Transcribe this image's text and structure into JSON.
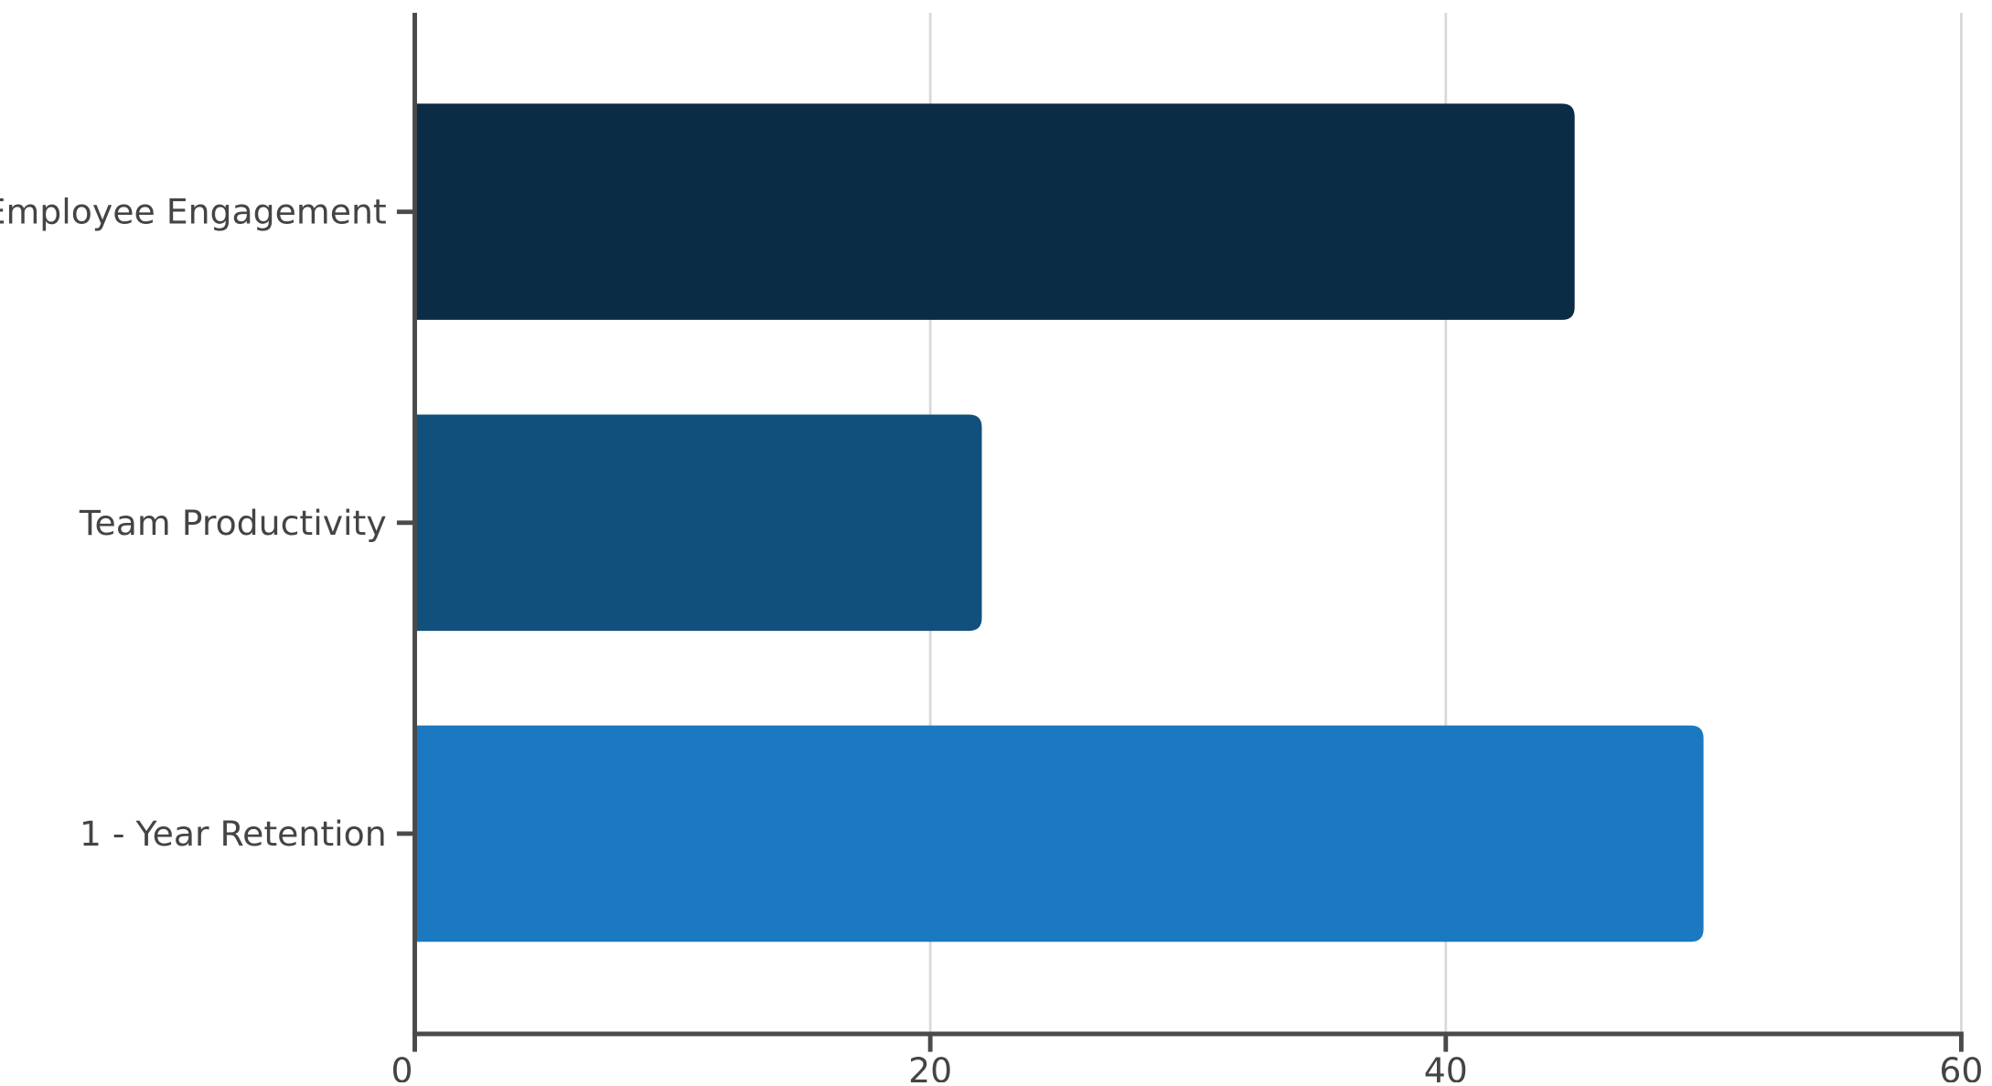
{
  "chart_data": {
    "type": "bar",
    "orientation": "horizontal",
    "title": "",
    "xlabel": "",
    "ylabel": "",
    "categories": [
      "Employee Engagement",
      "Team Productivity",
      "1 - Year Retention"
    ],
    "values": [
      45,
      22,
      50
    ],
    "bar_colors": [
      "#0b2c45",
      "#11507d",
      "#1a79c0"
    ],
    "xlim": [
      0,
      60
    ],
    "x_ticks": [
      0,
      20,
      40,
      60
    ],
    "x_tick_labels": [
      "0",
      "20",
      "40",
      "60"
    ],
    "grid": "vertical",
    "legend": "none",
    "colors": {
      "axis": "#4a4a4a",
      "grid": "#d9d9d9",
      "text": "#444444"
    }
  }
}
